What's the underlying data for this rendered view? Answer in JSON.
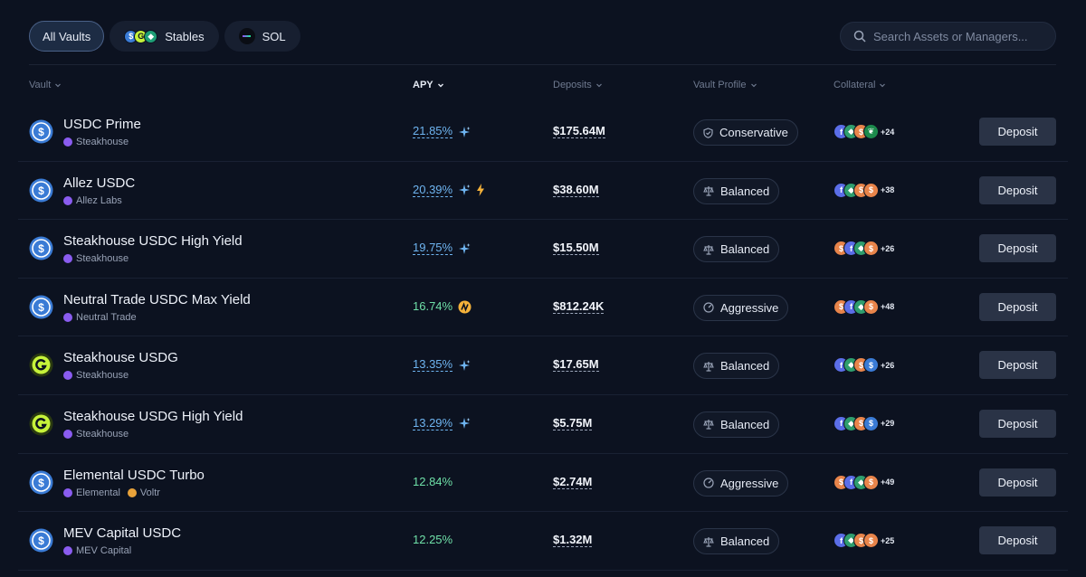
{
  "filters": [
    {
      "label": "All Vaults",
      "active": true
    },
    {
      "label": "Stables",
      "icons": [
        "usdc-icon",
        "usdg-icon",
        "gem-icon"
      ]
    },
    {
      "label": "SOL",
      "icons": [
        "solana-icon"
      ]
    }
  ],
  "search": {
    "placeholder": "Search Assets or Managers..."
  },
  "columns": {
    "vault": "Vault",
    "apy": "APY",
    "deposits": "Deposits",
    "profile": "Vault Profile",
    "collateral": "Collateral"
  },
  "colors": {
    "apy_blue": "#6eb4f0",
    "apy_green": "#6fe0a8",
    "usdc": "#3a7bd5",
    "usdg": "#c6f23a"
  },
  "rows": [
    {
      "name": "USDC Prime",
      "manager": "Steakhouse",
      "asset": "usdc",
      "apy": "21.85%",
      "apy_style": "blue",
      "apy_icons": [
        "sparkle-icon"
      ],
      "deposits": "$175.64M",
      "profile": "Conservative",
      "profile_icon": "shield-icon",
      "collateral_coins": [
        "purple",
        "green",
        "orange",
        "leaf"
      ],
      "collateral_more": "+24",
      "deposit_label": "Deposit"
    },
    {
      "name": "Allez USDC",
      "manager": "Allez Labs",
      "asset": "usdc",
      "apy": "20.39%",
      "apy_style": "blue",
      "apy_icons": [
        "sparkle-icon",
        "bolt-icon"
      ],
      "deposits": "$38.60M",
      "profile": "Balanced",
      "profile_icon": "scale-icon",
      "collateral_coins": [
        "purple",
        "green",
        "orange",
        "orange"
      ],
      "collateral_more": "+38",
      "deposit_label": "Deposit"
    },
    {
      "name": "Steakhouse USDC High Yield",
      "manager": "Steakhouse",
      "asset": "usdc",
      "apy": "19.75%",
      "apy_style": "blue",
      "apy_icons": [
        "sparkle-icon"
      ],
      "deposits": "$15.50M",
      "profile": "Balanced",
      "profile_icon": "scale-icon",
      "collateral_coins": [
        "orange",
        "purple",
        "green",
        "orange"
      ],
      "collateral_more": "+26",
      "deposit_label": "Deposit"
    },
    {
      "name": "Neutral Trade USDC Max Yield",
      "manager": "Neutral Trade",
      "asset": "usdc",
      "apy": "16.74%",
      "apy_style": "green",
      "apy_icons": [
        "neutral-token-icon"
      ],
      "deposits": "$812.24K",
      "profile": "Aggressive",
      "profile_icon": "gauge-icon",
      "collateral_coins": [
        "orange",
        "purple",
        "green",
        "orange"
      ],
      "collateral_more": "+48",
      "deposit_label": "Deposit"
    },
    {
      "name": "Steakhouse USDG",
      "manager": "Steakhouse",
      "asset": "usdg",
      "apy": "13.35%",
      "apy_style": "blue",
      "apy_icons": [
        "sparkle-icon"
      ],
      "deposits": "$17.65M",
      "profile": "Balanced",
      "profile_icon": "scale-icon",
      "collateral_coins": [
        "purple",
        "green",
        "orange",
        "blue"
      ],
      "collateral_more": "+26",
      "deposit_label": "Deposit"
    },
    {
      "name": "Steakhouse USDG High Yield",
      "manager": "Steakhouse",
      "asset": "usdg",
      "apy": "13.29%",
      "apy_style": "blue",
      "apy_icons": [
        "sparkle-icon"
      ],
      "deposits": "$5.75M",
      "profile": "Balanced",
      "profile_icon": "scale-icon",
      "collateral_coins": [
        "purple",
        "green",
        "orange",
        "blue"
      ],
      "collateral_more": "+29",
      "deposit_label": "Deposit"
    },
    {
      "name": "Elemental USDC Turbo",
      "manager": "Elemental",
      "manager2": "Voltr",
      "asset": "usdc",
      "apy": "12.84%",
      "apy_style": "green",
      "apy_icons": [],
      "deposits": "$2.74M",
      "profile": "Aggressive",
      "profile_icon": "gauge-icon",
      "collateral_coins": [
        "orange",
        "purple",
        "green",
        "orange"
      ],
      "collateral_more": "+49",
      "deposit_label": "Deposit"
    },
    {
      "name": "MEV Capital USDC",
      "manager": "MEV Capital",
      "asset": "usdc",
      "apy": "12.25%",
      "apy_style": "green",
      "apy_icons": [],
      "deposits": "$1.32M",
      "profile": "Balanced",
      "profile_icon": "scale-icon",
      "collateral_coins": [
        "purple",
        "green",
        "orange",
        "orange"
      ],
      "collateral_more": "+25",
      "deposit_label": "Deposit"
    }
  ]
}
